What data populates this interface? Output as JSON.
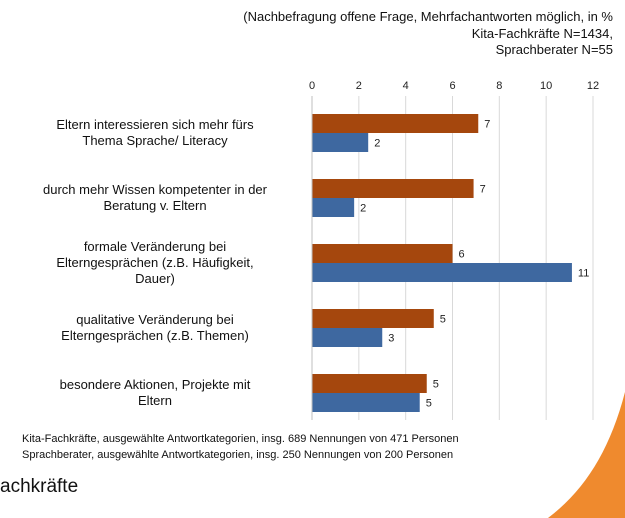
{
  "chart_data": {
    "type": "bar",
    "orientation": "horizontal",
    "subtitle": "(Nachbefragung offene Frage, Mehrfachantworten möglich, in %\nKita-Fachkräfte N=1434,\nSprachberater N=55",
    "categories": [
      "Eltern interessieren sich mehr fürs\nThema Sprache/ Literacy",
      "durch mehr Wissen kompetenter in der\nBeratung v. Eltern",
      "formale Veränderung bei\nElterngesprächen (z.B. Häufigkeit,\nDauer)",
      "qualitative Veränderung bei\nElterngesprächen (z.B. Themen)",
      "besondere Aktionen, Projekte mit\nEltern"
    ],
    "series": [
      {
        "color": "#a5470d",
        "values": [
          7.1,
          6.9,
          6.0,
          5.2,
          4.9
        ],
        "value_labels": [
          "7",
          "7",
          "6",
          "5",
          "5"
        ]
      },
      {
        "color": "#3e68a0",
        "values": [
          2.4,
          1.8,
          11.1,
          3.0,
          4.6
        ],
        "value_labels": [
          "2",
          "2",
          "11",
          "3",
          "5"
        ]
      }
    ],
    "xlim": [
      0,
      12
    ],
    "xticks": [
      0,
      2,
      4,
      6,
      8,
      10,
      12
    ],
    "grid": true,
    "footnotes": [
      "Kita-Fachkräfte, ausgewählte Antwortkategorien, insg. 689 Nennungen von 471 Personen",
      "Sprachberater, ausgewählte Antwortkategorien, insg. 250 Nennungen von 200 Personen"
    ],
    "footer_text": "achkräfte"
  }
}
